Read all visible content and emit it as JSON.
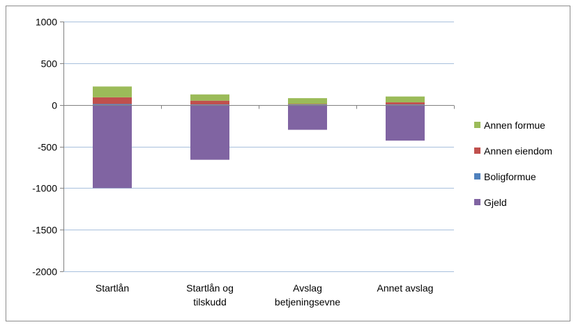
{
  "chart_data": {
    "type": "bar",
    "stacked": true,
    "categories": [
      [
        "Startlån"
      ],
      [
        "Startlån og",
        "tilskudd"
      ],
      [
        "Avslag",
        "betjeningsevne"
      ],
      [
        "Annet avslag"
      ]
    ],
    "series": [
      {
        "name": "Gjeld",
        "color": "#8064a2",
        "values": [
          -1000,
          -660,
          -300,
          -430
        ]
      },
      {
        "name": "Boligformue",
        "color": "#4f81bd",
        "values": [
          10,
          5,
          5,
          5
        ]
      },
      {
        "name": "Annen eiendom",
        "color": "#c0504d",
        "values": [
          80,
          45,
          5,
          25
        ]
      },
      {
        "name": "Annen formue",
        "color": "#9bbb59",
        "values": [
          130,
          75,
          70,
          70
        ]
      }
    ],
    "legend_order": [
      "Annen formue",
      "Annen eiendom",
      "Boligformue",
      "Gjeld"
    ],
    "yticks": [
      1000,
      500,
      0,
      -500,
      -1000,
      -1500,
      -2000
    ],
    "ylim": [
      -2000,
      1000
    ],
    "grid": true,
    "legend_position": "right",
    "title": "",
    "xlabel": "",
    "ylabel": ""
  }
}
